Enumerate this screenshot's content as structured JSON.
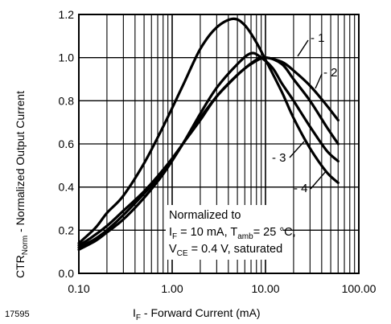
{
  "figure_id": "17595",
  "chart_data": {
    "type": "line",
    "xlabel": {
      "main": "I",
      "sub": "F",
      "rest": " - Forward Current (mA)"
    },
    "ylabel": {
      "main": "CTR",
      "sub": "Norm",
      "rest": " - Normalized Output Current"
    },
    "x_scale": "log",
    "xlim": [
      0.1,
      100
    ],
    "ylim": [
      0,
      1.2
    ],
    "x_tick_labels": [
      "0.10",
      "1.00",
      "10.00",
      "100.00"
    ],
    "y_tick_labels": [
      "0.0",
      "0.2",
      "0.4",
      "0.6",
      "0.8",
      "1.0",
      "1.2"
    ],
    "grid": true,
    "annotation": {
      "line1": "Normalized to",
      "line2": {
        "a": "I",
        "a_sub": "F",
        "b": " = 10 mA, T",
        "b_sub": "amb",
        "c": "= 25 °C,"
      },
      "line3": {
        "a": "V",
        "a_sub": "CE",
        "b": " = 0.4 V, saturated"
      }
    },
    "series": [
      {
        "name": "- 1",
        "x": [
          0.1,
          0.13,
          0.2,
          0.3,
          0.5,
          0.8,
          1.3,
          2,
          3,
          4.5,
          6,
          8,
          10,
          15,
          20,
          30,
          45,
          60
        ],
        "y": [
          0.13,
          0.16,
          0.22,
          0.29,
          0.38,
          0.48,
          0.6,
          0.72,
          0.82,
          0.9,
          0.95,
          0.99,
          1.0,
          0.98,
          0.94,
          0.87,
          0.78,
          0.71
        ]
      },
      {
        "name": "- 2",
        "x": [
          0.1,
          0.15,
          0.2,
          0.3,
          0.5,
          0.8,
          1.3,
          2,
          3,
          5,
          7,
          10,
          15,
          20,
          30,
          45,
          60
        ],
        "y": [
          0.12,
          0.16,
          0.2,
          0.27,
          0.37,
          0.47,
          0.6,
          0.71,
          0.82,
          0.92,
          0.97,
          1.0,
          0.97,
          0.9,
          0.8,
          0.68,
          0.6
        ]
      },
      {
        "name": "- 3",
        "x": [
          0.1,
          0.15,
          0.2,
          0.3,
          0.5,
          0.8,
          1.3,
          2,
          3,
          5,
          7,
          9,
          12,
          15,
          20,
          30,
          45,
          60
        ],
        "y": [
          0.11,
          0.15,
          0.19,
          0.25,
          0.35,
          0.46,
          0.6,
          0.74,
          0.86,
          0.97,
          1.02,
          1.0,
          0.95,
          0.88,
          0.8,
          0.68,
          0.57,
          0.52
        ]
      },
      {
        "name": "- 4",
        "x": [
          0.1,
          0.15,
          0.2,
          0.3,
          0.5,
          0.8,
          1.3,
          2,
          3,
          4.5,
          6,
          8,
          10,
          15,
          20,
          30,
          45,
          60
        ],
        "y": [
          0.14,
          0.21,
          0.28,
          0.36,
          0.51,
          0.68,
          0.87,
          1.04,
          1.14,
          1.18,
          1.15,
          1.07,
          0.99,
          0.84,
          0.72,
          0.58,
          0.47,
          0.42
        ]
      }
    ]
  }
}
